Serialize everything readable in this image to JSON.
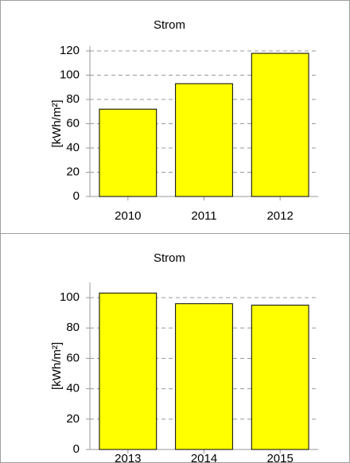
{
  "chart_data": [
    {
      "type": "bar",
      "title": "Strom",
      "ylabel": "[kWh/m²]",
      "categories": [
        "2010",
        "2011",
        "2012"
      ],
      "values": [
        72,
        93,
        118
      ],
      "color": "#ffff00",
      "ylim": [
        0,
        120
      ],
      "yticks": [
        0,
        20,
        40,
        60,
        80,
        100,
        120
      ],
      "grid": true
    },
    {
      "type": "bar",
      "title": "Strom",
      "ylabel": "[kWh/m²]",
      "categories": [
        "2013",
        "2014",
        "2015"
      ],
      "values": [
        103,
        96,
        95
      ],
      "color": "#ffff00",
      "ylim": [
        0,
        110
      ],
      "yticks": [
        0,
        20,
        40,
        60,
        80,
        100
      ],
      "grid": true
    }
  ]
}
